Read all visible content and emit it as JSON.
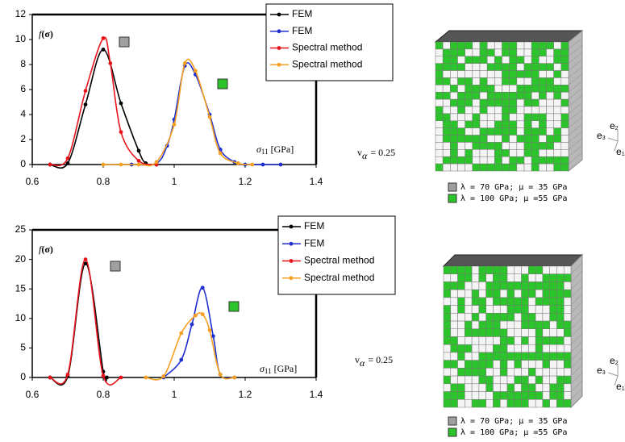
{
  "chart_data": [
    {
      "type": "line",
      "y_label": {
        "symbol": "f",
        "arg": "(σ)"
      },
      "x_label": {
        "symbol": "σ",
        "sub": "11",
        "unit": "[GPa]"
      },
      "xlim": [
        0.6,
        1.4
      ],
      "xticks": [
        0.6,
        0.8,
        1,
        1.2,
        1.4
      ],
      "ylim": [
        0,
        12
      ],
      "yticks": [
        0,
        2,
        4,
        6,
        8,
        10,
        12
      ],
      "grid": false,
      "legend": "top-right",
      "series": [
        {
          "name": "FEM",
          "color": "#000000",
          "x": [
            0.65,
            0.7,
            0.75,
            0.8,
            0.85,
            0.9,
            0.92,
            0.95
          ],
          "values": [
            0,
            0.1,
            4.8,
            9.2,
            4.9,
            1.1,
            0.1,
            0
          ]
        },
        {
          "name": "FEM",
          "color": "#1f2fd0",
          "x": [
            0.88,
            0.95,
            0.98,
            1.0,
            1.03,
            1.06,
            1.1,
            1.13,
            1.17,
            1.2,
            1.25,
            1.3
          ],
          "values": [
            0,
            0.1,
            1.5,
            3.6,
            7.9,
            7.2,
            4.0,
            1.2,
            0.2,
            0,
            0,
            0
          ]
        },
        {
          "name": "Spectral method",
          "color": "#e8141c",
          "x": [
            0.65,
            0.7,
            0.75,
            0.8,
            0.82,
            0.85,
            0.9,
            0.95
          ],
          "values": [
            0,
            0.5,
            5.9,
            10.1,
            8.1,
            2.6,
            0.3,
            0
          ]
        },
        {
          "name": "Spectral method",
          "color": "#f5a020",
          "x": [
            0.8,
            0.85,
            0.9,
            0.95,
            1.0,
            1.03,
            1.06,
            1.1,
            1.13,
            1.18,
            1.22
          ],
          "values": [
            0,
            0,
            0,
            0.2,
            3.2,
            8.1,
            7.5,
            3.8,
            0.9,
            0.1,
            0
          ]
        }
      ],
      "annotation": {
        "symbol": "v",
        "sub": "α",
        "text": "= 0.25"
      },
      "materials": [
        "λ = 70 GPa; μ = 35 GPa",
        "λ = 100 GPa; μ =55 GPa"
      ],
      "axes": [
        {
          "base": "e",
          "sub": "2"
        },
        {
          "base": "e",
          "sub": "3"
        },
        {
          "base": "e",
          "sub": "1"
        }
      ]
    },
    {
      "type": "line",
      "y_label": {
        "symbol": "f",
        "arg": "(σ)"
      },
      "x_label": {
        "symbol": "σ",
        "sub": "11",
        "unit": "[GPa]"
      },
      "xlim": [
        0.6,
        1.4
      ],
      "xticks": [
        0.6,
        0.8,
        1,
        1.2,
        1.4
      ],
      "ylim": [
        0,
        25
      ],
      "yticks": [
        0,
        5,
        10,
        15,
        20,
        25
      ],
      "grid": false,
      "legend": "top-right",
      "series": [
        {
          "name": "FEM",
          "color": "#000000",
          "x": [
            0.65,
            0.7,
            0.75,
            0.8,
            0.81
          ],
          "values": [
            0,
            0.2,
            19.3,
            1,
            0
          ]
        },
        {
          "name": "FEM",
          "color": "#1f2fd0",
          "x": [
            0.97,
            1.02,
            1.05,
            1.08,
            1.11,
            1.13,
            1.17
          ],
          "values": [
            0,
            3,
            9,
            15.2,
            7,
            0.5,
            0
          ]
        },
        {
          "name": "Spectral method",
          "color": "#e8141c",
          "x": [
            0.65,
            0.7,
            0.75,
            0.8,
            0.85
          ],
          "values": [
            0,
            0.5,
            20,
            0.3,
            0
          ]
        },
        {
          "name": "Spectral method",
          "color": "#f5a020",
          "x": [
            0.92,
            0.97,
            1.02,
            1.06,
            1.08,
            1.1,
            1.13,
            1.17
          ],
          "values": [
            0,
            0.2,
            7.5,
            10.5,
            10.7,
            8,
            0.5,
            0
          ]
        }
      ],
      "annotation": {
        "symbol": "v",
        "sub": "α",
        "text": "= 0.25"
      },
      "materials": [
        "λ = 70 GPa; μ = 35 GPa",
        "λ = 100 GPa; μ =55 GPa"
      ],
      "axes": [
        {
          "base": "e",
          "sub": "2"
        },
        {
          "base": "e",
          "sub": "3"
        },
        {
          "base": "e",
          "sub": "1"
        }
      ]
    }
  ]
}
